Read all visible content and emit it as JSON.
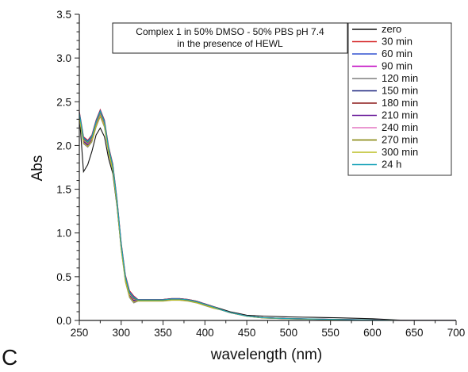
{
  "figure": {
    "panel_letter": "C"
  },
  "colors": {
    "axis": "#222222",
    "legend_border": "#333333",
    "box_border": "#222222"
  },
  "chart_data": {
    "type": "line",
    "title_box": [
      "Complex 1 in 50% DMSO - 50% PBS pH 7.4",
      "in the presence of HEWL"
    ],
    "xlabel": "wavelength (nm)",
    "ylabel": "Abs",
    "xlim": [
      250,
      700
    ],
    "ylim": [
      0,
      3.5
    ],
    "xticks": [
      250,
      300,
      350,
      400,
      450,
      500,
      550,
      600,
      650,
      700
    ],
    "yticks": [
      0.0,
      0.5,
      1.0,
      1.5,
      2.0,
      2.5,
      3.0,
      3.5
    ],
    "ytick_labels": [
      "0.0",
      "0.5",
      "1.0",
      "1.5",
      "2.0",
      "2.5",
      "3.0",
      "3.5"
    ],
    "grid": false,
    "legend_position": "top-right",
    "x": [
      250,
      255,
      260,
      265,
      270,
      275,
      280,
      285,
      290,
      295,
      300,
      305,
      310,
      315,
      320,
      330,
      340,
      350,
      360,
      370,
      380,
      390,
      400,
      410,
      420,
      430,
      440,
      450,
      470,
      500,
      530,
      560,
      600,
      630,
      650,
      700
    ],
    "base_curve": [
      2.35,
      2.06,
      2.02,
      2.08,
      2.25,
      2.37,
      2.25,
      1.95,
      1.75,
      1.35,
      0.85,
      0.48,
      0.3,
      0.24,
      0.23,
      0.23,
      0.23,
      0.23,
      0.24,
      0.24,
      0.23,
      0.21,
      0.18,
      0.15,
      0.12,
      0.09,
      0.07,
      0.05,
      0.03,
      0.02,
      0.015,
      0.01,
      0.005,
      0.0,
      0.0,
      0.0
    ],
    "series": [
      {
        "name": "zero",
        "color": "#111111",
        "values": [
          2.35,
          1.7,
          1.78,
          1.93,
          2.12,
          2.2,
          2.1,
          1.85,
          1.68,
          1.3,
          0.82,
          0.47,
          0.3,
          0.25,
          0.24,
          0.24,
          0.24,
          0.24,
          0.25,
          0.25,
          0.24,
          0.22,
          0.19,
          0.16,
          0.13,
          0.1,
          0.08,
          0.06,
          0.05,
          0.04,
          0.035,
          0.03,
          0.02,
          0.005,
          0.0,
          0.0
        ]
      },
      {
        "name": "30 min",
        "color": "#d62728",
        "offset": 0.04
      },
      {
        "name": "60 min",
        "color": "#3050d0",
        "offset": 0.03
      },
      {
        "name": "90 min",
        "color": "#c000c0",
        "offset": 0.01
      },
      {
        "name": "120 min",
        "color": "#7f7f7f",
        "offset": -0.04
      },
      {
        "name": "150 min",
        "color": "#1a237e",
        "offset": -0.01
      },
      {
        "name": "180 min",
        "color": "#8b1a1a",
        "offset": 0.02
      },
      {
        "name": "210 min",
        "color": "#6a1b9a",
        "offset": -0.02
      },
      {
        "name": "240 min",
        "color": "#e377c2",
        "offset": 0.0
      },
      {
        "name": "270 min",
        "color": "#808000",
        "offset": 0.01
      },
      {
        "name": "300 min",
        "color": "#bcbd22",
        "offset": -0.03
      },
      {
        "name": "24 h",
        "color": "#17a2b8",
        "offset": 0.02
      }
    ]
  }
}
